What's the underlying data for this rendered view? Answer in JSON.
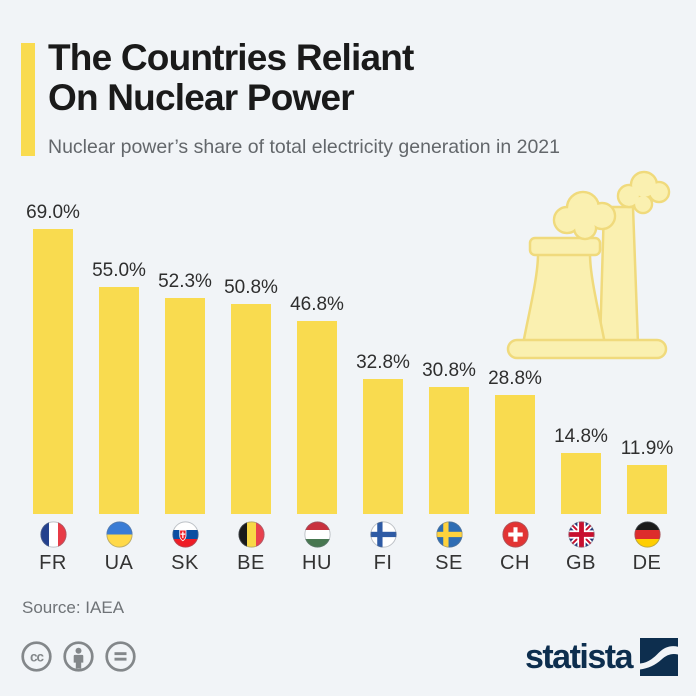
{
  "page": {
    "background": "#F1F4F7"
  },
  "header": {
    "accent_color": "#F9DB4F",
    "title_line1": "The Countries Reliant",
    "title_line2": "On Nuclear Power",
    "subtitle": "Nuclear power’s share of total electricity generation in 2021"
  },
  "chart_data": {
    "type": "bar",
    "title": "The Countries Reliant On Nuclear Power",
    "subtitle": "Nuclear power’s share of total electricity generation in 2021",
    "unit": "%",
    "ylim": [
      0,
      77
    ],
    "grid": false,
    "legend": "none",
    "bar_color": "#F9DB4F",
    "categories": [
      "FR",
      "UA",
      "SK",
      "BE",
      "HU",
      "FI",
      "SE",
      "CH",
      "GB",
      "DE"
    ],
    "values": [
      69.0,
      55.0,
      52.3,
      50.8,
      46.8,
      32.8,
      30.8,
      28.8,
      14.8,
      11.9
    ],
    "value_labels": [
      "69.0%",
      "55.0%",
      "52.3%",
      "50.8%",
      "46.8%",
      "32.8%",
      "30.8%",
      "28.8%",
      "14.8%",
      "11.9%"
    ],
    "flag_icons": [
      "flag-fr-icon",
      "flag-ua-icon",
      "flag-sk-icon",
      "flag-be-icon",
      "flag-hu-icon",
      "flag-fi-icon",
      "flag-se-icon",
      "flag-ch-icon",
      "flag-gb-icon",
      "flag-de-icon"
    ],
    "decoration_icon": "nuclear-power-plant-icon"
  },
  "footer": {
    "source": "Source: IAEA",
    "license_icons": [
      "cc-icon",
      "attribution-icon",
      "no-derivatives-icon"
    ],
    "brand": "statista",
    "brand_color": "#0D2E4E"
  }
}
